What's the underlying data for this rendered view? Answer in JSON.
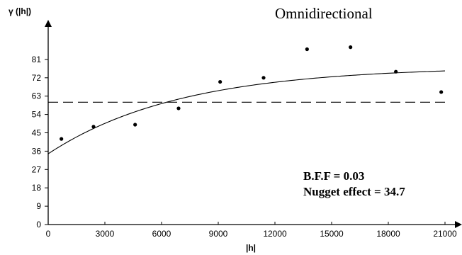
{
  "chart_data": {
    "type": "scatter",
    "title": "Omnidirectional",
    "xlabel": "|h|",
    "ylabel": "γ (|h|)",
    "xlim": [
      0,
      21000
    ],
    "ylim": [
      0,
      90
    ],
    "x_ticks": [
      0,
      3000,
      6000,
      9000,
      12000,
      15000,
      18000,
      21000
    ],
    "y_ticks": [
      0,
      9,
      18,
      27,
      36,
      45,
      54,
      63,
      72,
      81
    ],
    "grid": false,
    "series": [
      {
        "kind": "points",
        "x": [
          700,
          2400,
          4600,
          6900,
          9100,
          11400,
          13700,
          16000,
          18400,
          20800
        ],
        "y": [
          42,
          48,
          49,
          57,
          70,
          72,
          86,
          87,
          75,
          65
        ]
      },
      {
        "kind": "fitted-model",
        "nugget": 34.7,
        "sill": 77.5,
        "range_param": 7000,
        "x": [
          0,
          1000,
          2000,
          3000,
          4000,
          5000,
          6000,
          7000,
          8000,
          9000,
          10000,
          11000,
          12000,
          13000,
          14000,
          15000,
          16000,
          17000,
          18000,
          19000,
          20000,
          21000
        ],
        "y": [
          34.7,
          40.4,
          45.3,
          49.5,
          53.2,
          56.2,
          58.9,
          61.2,
          63.1,
          64.8,
          66.2,
          67.4,
          68.5,
          69.3,
          70.1,
          70.7,
          71.3,
          71.8,
          72.2,
          72.5,
          72.8,
          73.1
        ]
      },
      {
        "kind": "reference-line",
        "style": "dashed",
        "y": 60
      }
    ],
    "annotations": [
      "B.F.F = 0.03",
      "Nugget effect = 34.7"
    ]
  }
}
